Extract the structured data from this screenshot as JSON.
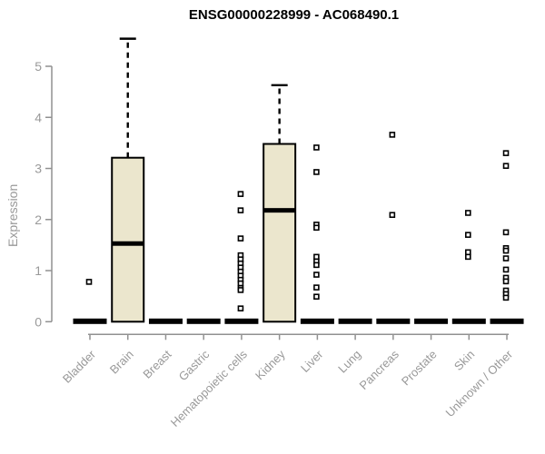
{
  "chart_data": {
    "type": "boxplot",
    "title": "ENSG00000228999 - AC068490.1",
    "ylabel": "Expression",
    "xlabel": "",
    "ylim": [
      0,
      5
    ],
    "yticks": [
      0,
      1,
      2,
      3,
      4,
      5
    ],
    "grid": false,
    "legend": "none",
    "categories": [
      "Bladder",
      "Brain",
      "Breast",
      "Gastric",
      "Hematopoietic cells",
      "Kidney",
      "Liver",
      "Lung",
      "Pancreas",
      "Prostate",
      "Skin",
      "Unknown / Other"
    ],
    "series": [
      {
        "category": "Bladder",
        "q1": 0,
        "median": 0,
        "q3": 0,
        "whisker_low": 0,
        "whisker_high": 0,
        "outliers": [
          0.78
        ]
      },
      {
        "category": "Brain",
        "q1": 0,
        "median": 1.53,
        "q3": 3.21,
        "whisker_low": 0,
        "whisker_high": 5.54,
        "outliers": []
      },
      {
        "category": "Breast",
        "q1": 0,
        "median": 0,
        "q3": 0,
        "whisker_low": 0,
        "whisker_high": 0,
        "outliers": []
      },
      {
        "category": "Gastric",
        "q1": 0,
        "median": 0,
        "q3": 0,
        "whisker_low": 0,
        "whisker_high": 0,
        "outliers": []
      },
      {
        "category": "Hematopoietic cells",
        "q1": 0,
        "median": 0,
        "q3": 0,
        "whisker_low": 0,
        "whisker_high": 0,
        "outliers": [
          2.5,
          2.18,
          1.63,
          1.3,
          1.22,
          1.14,
          1.06,
          0.98,
          0.9,
          0.82,
          0.75,
          0.66,
          0.62,
          0.26
        ]
      },
      {
        "category": "Kidney",
        "q1": 0,
        "median": 2.18,
        "q3": 3.48,
        "whisker_low": 0,
        "whisker_high": 4.63,
        "outliers": []
      },
      {
        "category": "Liver",
        "q1": 0,
        "median": 0,
        "q3": 0,
        "whisker_low": 0,
        "whisker_high": 0,
        "outliers": [
          3.41,
          2.93,
          1.9,
          1.84,
          1.27,
          1.18,
          1.11,
          0.92,
          0.67,
          0.49
        ]
      },
      {
        "category": "Lung",
        "q1": 0,
        "median": 0,
        "q3": 0,
        "whisker_low": 0,
        "whisker_high": 0,
        "outliers": []
      },
      {
        "category": "Pancreas",
        "q1": 0,
        "median": 0,
        "q3": 0,
        "whisker_low": 0,
        "whisker_high": 0,
        "outliers": [
          3.66,
          2.09
        ]
      },
      {
        "category": "Prostate",
        "q1": 0,
        "median": 0,
        "q3": 0,
        "whisker_low": 0,
        "whisker_high": 0,
        "outliers": []
      },
      {
        "category": "Skin",
        "q1": 0,
        "median": 0,
        "q3": 0,
        "whisker_low": 0,
        "whisker_high": 0,
        "outliers": [
          2.13,
          1.7,
          1.36,
          1.27
        ]
      },
      {
        "category": "Unknown / Other",
        "q1": 0,
        "median": 0,
        "q3": 0,
        "whisker_low": 0,
        "whisker_high": 0,
        "outliers": [
          3.3,
          3.05,
          1.75,
          1.44,
          1.39,
          1.24,
          1.02,
          0.86,
          0.79,
          0.61,
          0.54,
          0.47
        ]
      }
    ],
    "colors": {
      "box_fill": "#EBE6CD",
      "box_stroke": "#000000",
      "median": "#000000",
      "whisker": "#000000",
      "outlier_stroke": "#000000",
      "outlier_fill": "#ffffff",
      "axis": "#919191",
      "tick_text": "#999999",
      "title_text": "#000000",
      "background": "#ffffff"
    }
  }
}
